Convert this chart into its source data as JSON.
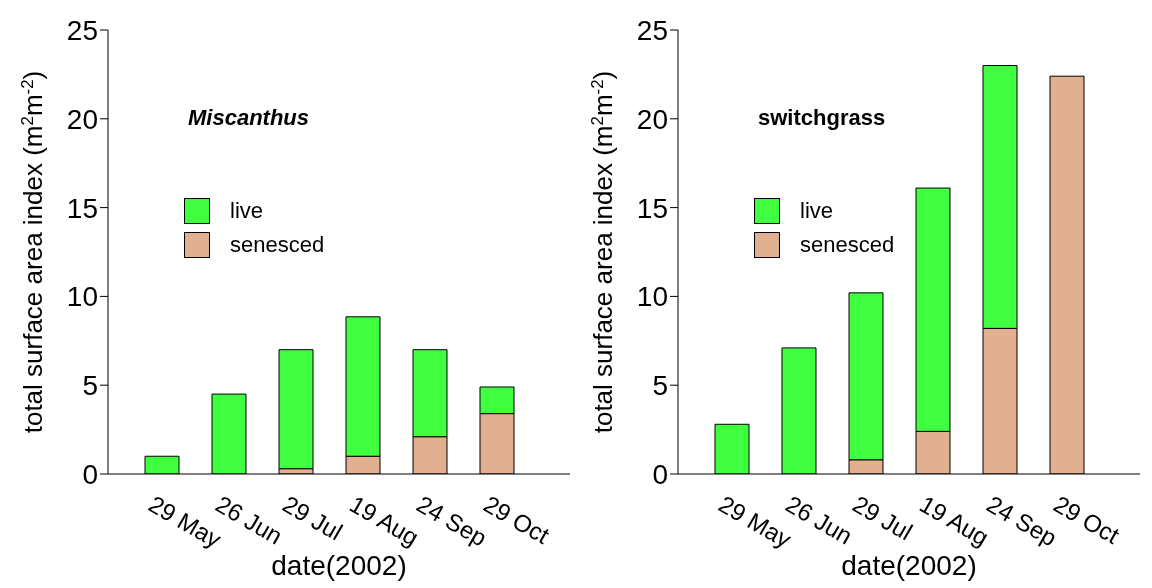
{
  "chart_data": [
    {
      "type": "bar",
      "stacked": true,
      "xlabel": "date(2002)",
      "ylabel": "total surface area index (m$^{2}$m$^{-2}$)",
      "annotations": [
        "Miscanthus"
      ],
      "categories": [
        "29 May",
        "26 Jun",
        "29 Jul",
        "19 Aug",
        "24 Sep",
        "29 Oct"
      ],
      "series": [
        {
          "name": "senesced",
          "color": "#e0b090",
          "values": [
            0,
            0,
            0.3,
            1.0,
            2.1,
            3.4
          ]
        },
        {
          "name": "live",
          "color": "#40ff40",
          "values": [
            1.0,
            4.5,
            6.7,
            7.85,
            4.9,
            1.5
          ]
        }
      ],
      "ylim": [
        0,
        25
      ],
      "yticks": [
        0,
        5,
        10,
        15,
        20,
        25
      ],
      "grid": false,
      "legend": "top left"
    },
    {
      "type": "bar",
      "stacked": true,
      "xlabel": "date(2002)",
      "ylabel": "total surface area index (m$^{2}$m$^{-2}$)",
      "annotations": [
        "switchgrass"
      ],
      "categories": [
        "29 May",
        "26 Jun",
        "29 Jul",
        "19 Aug",
        "24 Sep",
        "29 Oct"
      ],
      "series": [
        {
          "name": "senesced",
          "color": "#e0b090",
          "values": [
            0,
            0,
            0.8,
            2.4,
            8.2,
            22.4
          ]
        },
        {
          "name": "live",
          "color": "#40ff40",
          "values": [
            2.8,
            7.1,
            9.4,
            13.7,
            14.8,
            0
          ]
        }
      ],
      "ylim": [
        0,
        25
      ],
      "yticks": [
        0,
        5,
        10,
        15,
        20,
        25
      ],
      "grid": false,
      "legend": "top left"
    }
  ]
}
